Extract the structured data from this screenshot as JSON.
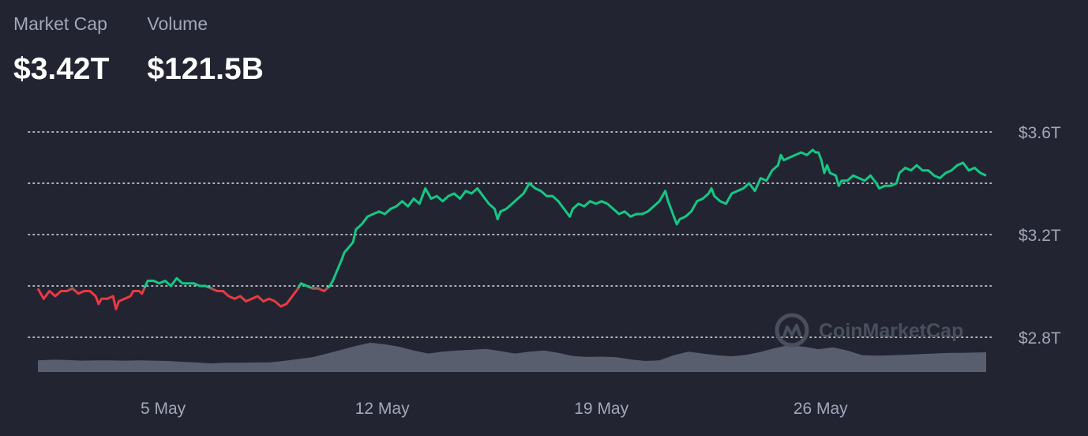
{
  "stats": {
    "market_cap_label": "Market Cap",
    "market_cap_value": "$3.42T",
    "volume_label": "Volume",
    "volume_value": "$121.5B"
  },
  "watermark": "CoinMarketCap",
  "colors": {
    "background": "#222531",
    "up": "#16c784",
    "down": "#ea3943",
    "volume": "#595e6f",
    "grid": "#dfe2ea",
    "label": "#a1a7bb"
  },
  "chart_data": {
    "type": "line",
    "title": "",
    "xlabel": "",
    "ylabel": "",
    "baseline": 2.99,
    "ylim": [
      2.72,
      3.66
    ],
    "yticks": [
      {
        "value": 3.6,
        "label": "$3.6T"
      },
      {
        "value": 3.4,
        "label": ""
      },
      {
        "value": 3.2,
        "label": "$3.2T"
      },
      {
        "value": 3.0,
        "label": ""
      },
      {
        "value": 2.8,
        "label": "$2.8T"
      }
    ],
    "xticks": [
      {
        "value": 4.0,
        "label": "5 May"
      },
      {
        "value": 11.0,
        "label": "12 May"
      },
      {
        "value": 18.0,
        "label": "19 May"
      },
      {
        "value": 25.0,
        "label": "26 May"
      }
    ],
    "xlim": [
      0,
      30.2
    ],
    "grid": true,
    "series": [
      {
        "values": [
          [
            0.0,
            2.99
          ],
          [
            0.2,
            2.95
          ],
          [
            0.4,
            2.98
          ],
          [
            0.6,
            2.96
          ],
          [
            0.8,
            2.98
          ],
          [
            1.0,
            2.98
          ],
          [
            1.2,
            2.99
          ],
          [
            1.4,
            2.97
          ],
          [
            1.6,
            2.98
          ],
          [
            1.8,
            2.98
          ],
          [
            2.0,
            2.96
          ],
          [
            2.1,
            2.93
          ],
          [
            2.2,
            2.95
          ],
          [
            2.4,
            2.95
          ],
          [
            2.6,
            2.96
          ],
          [
            2.7,
            2.91
          ],
          [
            2.8,
            2.94
          ],
          [
            3.0,
            2.95
          ],
          [
            3.2,
            2.96
          ],
          [
            3.3,
            2.98
          ],
          [
            3.5,
            2.98
          ],
          [
            3.6,
            2.97
          ],
          [
            3.8,
            3.02
          ],
          [
            4.0,
            3.02
          ],
          [
            4.2,
            3.01
          ],
          [
            4.4,
            3.02
          ],
          [
            4.6,
            3.0
          ],
          [
            4.8,
            3.03
          ],
          [
            5.0,
            3.01
          ],
          [
            5.2,
            3.01
          ],
          [
            5.4,
            3.01
          ],
          [
            5.6,
            3.0
          ],
          [
            5.8,
            3.0
          ],
          [
            6.0,
            2.99
          ],
          [
            6.2,
            2.98
          ],
          [
            6.4,
            2.98
          ],
          [
            6.6,
            2.96
          ],
          [
            6.8,
            2.95
          ],
          [
            7.0,
            2.96
          ],
          [
            7.2,
            2.94
          ],
          [
            7.4,
            2.95
          ],
          [
            7.6,
            2.96
          ],
          [
            7.8,
            2.94
          ],
          [
            8.0,
            2.95
          ],
          [
            8.2,
            2.94
          ],
          [
            8.4,
            2.92
          ],
          [
            8.6,
            2.93
          ],
          [
            8.8,
            2.96
          ],
          [
            9.0,
            2.99
          ],
          [
            9.1,
            3.01
          ],
          [
            9.3,
            3.0
          ],
          [
            9.5,
            2.99
          ],
          [
            9.7,
            2.99
          ],
          [
            9.9,
            2.98
          ],
          [
            10.0,
            2.99
          ],
          [
            10.1,
            3.0
          ],
          [
            10.2,
            3.02
          ],
          [
            10.35,
            3.06
          ],
          [
            10.5,
            3.1
          ],
          [
            10.6,
            3.13
          ],
          [
            10.75,
            3.15
          ],
          [
            10.9,
            3.17
          ],
          [
            11.0,
            3.22
          ],
          [
            11.2,
            3.24
          ],
          [
            11.4,
            3.27
          ],
          [
            11.6,
            3.28
          ],
          [
            11.8,
            3.29
          ],
          [
            12.0,
            3.28
          ],
          [
            12.2,
            3.3
          ],
          [
            12.4,
            3.31
          ],
          [
            12.6,
            3.33
          ],
          [
            12.8,
            3.31
          ],
          [
            13.0,
            3.34
          ],
          [
            13.2,
            3.32
          ],
          [
            13.4,
            3.38
          ],
          [
            13.6,
            3.34
          ],
          [
            13.8,
            3.35
          ],
          [
            14.0,
            3.33
          ],
          [
            14.2,
            3.35
          ],
          [
            14.4,
            3.36
          ],
          [
            14.6,
            3.34
          ],
          [
            14.8,
            3.37
          ],
          [
            15.0,
            3.36
          ],
          [
            15.2,
            3.38
          ],
          [
            15.4,
            3.35
          ],
          [
            15.6,
            3.32
          ],
          [
            15.8,
            3.3
          ],
          [
            15.9,
            3.26
          ],
          [
            16.0,
            3.29
          ],
          [
            16.2,
            3.3
          ],
          [
            16.4,
            3.32
          ],
          [
            16.6,
            3.34
          ],
          [
            16.8,
            3.36
          ],
          [
            17.0,
            3.4
          ],
          [
            17.2,
            3.38
          ],
          [
            17.4,
            3.37
          ],
          [
            17.6,
            3.35
          ],
          [
            17.8,
            3.35
          ],
          [
            18.0,
            3.33
          ],
          [
            18.2,
            3.3
          ],
          [
            18.4,
            3.27
          ],
          [
            18.5,
            3.3
          ],
          [
            18.7,
            3.32
          ],
          [
            18.9,
            3.31
          ],
          [
            19.1,
            3.33
          ],
          [
            19.3,
            3.32
          ],
          [
            19.5,
            3.33
          ],
          [
            19.7,
            3.32
          ],
          [
            19.9,
            3.3
          ],
          [
            20.1,
            3.28
          ],
          [
            20.3,
            3.29
          ],
          [
            20.5,
            3.27
          ],
          [
            20.7,
            3.28
          ],
          [
            20.9,
            3.28
          ],
          [
            21.1,
            3.29
          ],
          [
            21.3,
            3.31
          ],
          [
            21.5,
            3.33
          ],
          [
            21.7,
            3.37
          ],
          [
            21.8,
            3.33
          ],
          [
            21.9,
            3.3
          ],
          [
            22.0,
            3.27
          ],
          [
            22.1,
            3.24
          ],
          [
            22.2,
            3.26
          ],
          [
            22.4,
            3.27
          ],
          [
            22.6,
            3.29
          ],
          [
            22.8,
            3.33
          ],
          [
            23.0,
            3.34
          ],
          [
            23.2,
            3.36
          ],
          [
            23.3,
            3.38
          ],
          [
            23.4,
            3.35
          ],
          [
            23.6,
            3.33
          ],
          [
            23.8,
            3.32
          ],
          [
            24.0,
            3.36
          ],
          [
            24.2,
            3.37
          ],
          [
            24.4,
            3.38
          ],
          [
            24.6,
            3.4
          ],
          [
            24.8,
            3.37
          ],
          [
            25.0,
            3.42
          ],
          [
            25.2,
            3.41
          ],
          [
            25.4,
            3.45
          ],
          [
            25.6,
            3.47
          ],
          [
            25.7,
            3.51
          ],
          [
            25.8,
            3.49
          ],
          [
            26.0,
            3.5
          ],
          [
            26.2,
            3.51
          ],
          [
            26.4,
            3.52
          ],
          [
            26.6,
            3.51
          ],
          [
            26.8,
            3.53
          ],
          [
            26.9,
            3.52
          ],
          [
            27.0,
            3.52
          ],
          [
            27.1,
            3.49
          ],
          [
            27.2,
            3.44
          ],
          [
            27.3,
            3.47
          ],
          [
            27.4,
            3.44
          ],
          [
            27.6,
            3.43
          ],
          [
            27.7,
            3.39
          ],
          [
            27.8,
            3.41
          ],
          [
            28.0,
            3.41
          ],
          [
            28.2,
            3.43
          ],
          [
            28.4,
            3.42
          ],
          [
            28.6,
            3.41
          ],
          [
            28.8,
            3.43
          ],
          [
            29.0,
            3.4
          ],
          [
            29.1,
            3.38
          ],
          [
            29.3,
            3.39
          ],
          [
            29.5,
            3.39
          ],
          [
            29.7,
            3.4
          ],
          [
            29.8,
            3.44
          ],
          [
            30.0,
            3.46
          ],
          [
            30.2,
            3.45
          ],
          [
            30.4,
            3.47
          ],
          [
            30.6,
            3.45
          ],
          [
            30.8,
            3.45
          ],
          [
            31.0,
            3.43
          ],
          [
            31.2,
            3.42
          ],
          [
            31.4,
            3.44
          ],
          [
            31.6,
            3.45
          ],
          [
            31.8,
            3.47
          ],
          [
            32.0,
            3.48
          ],
          [
            32.2,
            3.45
          ],
          [
            32.4,
            3.46
          ],
          [
            32.6,
            3.44
          ],
          [
            32.8,
            3.43
          ]
        ]
      }
    ],
    "volume": {
      "ylim": [
        0,
        1
      ],
      "values": [
        [
          0.0,
          0.38
        ],
        [
          0.5,
          0.4
        ],
        [
          1.0,
          0.39
        ],
        [
          1.5,
          0.37
        ],
        [
          2.0,
          0.38
        ],
        [
          2.5,
          0.38
        ],
        [
          3.0,
          0.37
        ],
        [
          3.5,
          0.38
        ],
        [
          4.0,
          0.37
        ],
        [
          4.5,
          0.36
        ],
        [
          5.0,
          0.33
        ],
        [
          5.5,
          0.31
        ],
        [
          6.0,
          0.28
        ],
        [
          6.5,
          0.3
        ],
        [
          7.0,
          0.3
        ],
        [
          7.5,
          0.31
        ],
        [
          8.0,
          0.31
        ],
        [
          8.5,
          0.36
        ],
        [
          9.0,
          0.42
        ],
        [
          9.5,
          0.48
        ],
        [
          10.0,
          0.6
        ],
        [
          10.5,
          0.72
        ],
        [
          11.0,
          0.85
        ],
        [
          11.5,
          0.95
        ],
        [
          12.0,
          0.9
        ],
        [
          12.5,
          0.82
        ],
        [
          13.0,
          0.7
        ],
        [
          13.5,
          0.6
        ],
        [
          14.0,
          0.66
        ],
        [
          14.5,
          0.7
        ],
        [
          15.0,
          0.72
        ],
        [
          15.5,
          0.75
        ],
        [
          16.0,
          0.68
        ],
        [
          16.5,
          0.6
        ],
        [
          17.0,
          0.66
        ],
        [
          17.5,
          0.7
        ],
        [
          18.0,
          0.62
        ],
        [
          18.5,
          0.52
        ],
        [
          19.0,
          0.49
        ],
        [
          19.5,
          0.5
        ],
        [
          20.0,
          0.48
        ],
        [
          20.5,
          0.41
        ],
        [
          21.0,
          0.36
        ],
        [
          21.5,
          0.38
        ],
        [
          22.0,
          0.55
        ],
        [
          22.5,
          0.66
        ],
        [
          23.0,
          0.6
        ],
        [
          23.5,
          0.54
        ],
        [
          24.0,
          0.51
        ],
        [
          24.5,
          0.56
        ],
        [
          25.0,
          0.65
        ],
        [
          25.5,
          0.78
        ],
        [
          26.0,
          0.88
        ],
        [
          26.5,
          0.82
        ],
        [
          27.0,
          0.74
        ],
        [
          27.5,
          0.8
        ],
        [
          28.0,
          0.7
        ],
        [
          28.5,
          0.55
        ],
        [
          29.0,
          0.53
        ],
        [
          29.5,
          0.54
        ],
        [
          30.0,
          0.56
        ],
        [
          30.5,
          0.58
        ],
        [
          31.0,
          0.6
        ],
        [
          31.5,
          0.62
        ],
        [
          32.0,
          0.62
        ],
        [
          32.8,
          0.64
        ]
      ]
    }
  }
}
